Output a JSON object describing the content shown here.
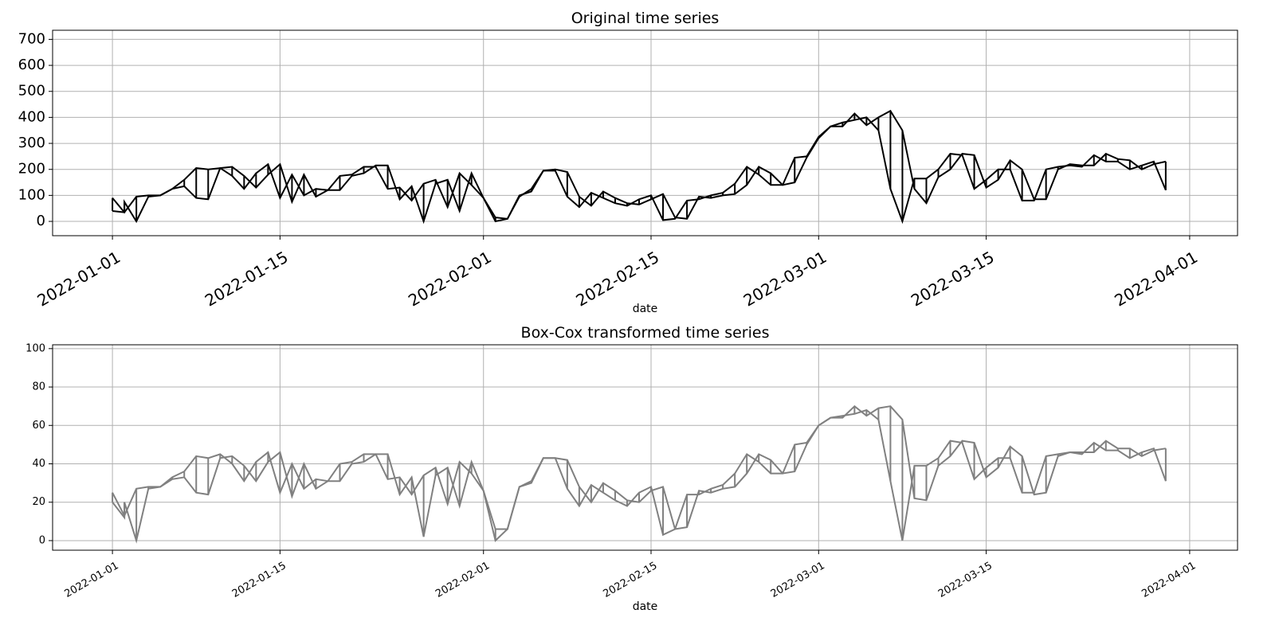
{
  "chart_data": [
    {
      "type": "line",
      "title": "Original time series",
      "xlabel": "date",
      "ylabel": "",
      "xlim": [
        "2021-12-27",
        "2022-04-05"
      ],
      "ylim": [
        -55,
        735
      ],
      "yticks": [
        0,
        100,
        200,
        300,
        400,
        500,
        600,
        700
      ],
      "xticks": [
        "2022-01-01",
        "2022-01-15",
        "2022-02-01",
        "2022-02-15",
        "2022-03-01",
        "2022-03-15",
        "2022-04-01"
      ],
      "grid": true,
      "color": "#000000",
      "series": [
        {
          "x": [
            "2022-01-01",
            "2022-01-02",
            "2022-01-03",
            "2022-01-04",
            "2022-01-05",
            "2022-01-06",
            "2022-01-07",
            "2022-01-08",
            "2022-01-09",
            "2022-01-10",
            "2022-01-11",
            "2022-01-12",
            "2022-01-13",
            "2022-01-14",
            "2022-01-15",
            "2022-01-16",
            "2022-01-17",
            "2022-01-18",
            "2022-01-19",
            "2022-01-20",
            "2022-01-21",
            "2022-01-22",
            "2022-01-23",
            "2022-01-24",
            "2022-01-25",
            "2022-01-26",
            "2022-01-27",
            "2022-01-28",
            "2022-01-29",
            "2022-01-30",
            "2022-01-31",
            "2022-02-01",
            "2022-02-02",
            "2022-02-03",
            "2022-02-04",
            "2022-02-05",
            "2022-02-06",
            "2022-02-07",
            "2022-02-08",
            "2022-02-09",
            "2022-02-10",
            "2022-02-11",
            "2022-02-12",
            "2022-02-13",
            "2022-02-14",
            "2022-02-15",
            "2022-02-16",
            "2022-02-17",
            "2022-02-18",
            "2022-02-19",
            "2022-02-20",
            "2022-02-21",
            "2022-02-22",
            "2022-02-23",
            "2022-02-24",
            "2022-02-25",
            "2022-02-26",
            "2022-02-27",
            "2022-02-28",
            "2022-03-01",
            "2022-03-02",
            "2022-03-03",
            "2022-03-04",
            "2022-03-05",
            "2022-03-06",
            "2022-03-07",
            "2022-03-08",
            "2022-03-09",
            "2022-03-10",
            "2022-03-11",
            "2022-03-12",
            "2022-03-13",
            "2022-03-14",
            "2022-03-15",
            "2022-03-16",
            "2022-03-17",
            "2022-03-18",
            "2022-03-19",
            "2022-03-20",
            "2022-03-21",
            "2022-03-22",
            "2022-03-23",
            "2022-03-24",
            "2022-03-25",
            "2022-03-26",
            "2022-03-27",
            "2022-03-28",
            "2022-03-29",
            "2022-03-30"
          ],
          "y": [
            90,
            35,
            95,
            100,
            100,
            125,
            160,
            205,
            200,
            205,
            175,
            125,
            185,
            220,
            90,
            180,
            100,
            125,
            120,
            175,
            180,
            210,
            210,
            125,
            130,
            80,
            145,
            160,
            55,
            185,
            140,
            90,
            15,
            10,
            95,
            125,
            195,
            200,
            190,
            95,
            60,
            115,
            90,
            70,
            65,
            85,
            105,
            15,
            10,
            95,
            90,
            100,
            105,
            140,
            210,
            185,
            140,
            150,
            245,
            320,
            365,
            365,
            415,
            370,
            400,
            425,
            350,
            125,
            70,
            170,
            200,
            260,
            255,
            130,
            160,
            235,
            200,
            85,
            85,
            200,
            220,
            215,
            215,
            260,
            240,
            235,
            200,
            220,
            230
          ]
        },
        {
          "x": [
            "2022-01-01",
            "2022-01-02",
            "2022-01-02",
            "2022-01-03",
            "2022-01-04",
            "2022-01-05",
            "2022-01-06",
            "2022-01-07",
            "2022-01-08",
            "2022-01-09",
            "2022-01-10",
            "2022-01-11",
            "2022-01-12",
            "2022-01-13",
            "2022-01-14",
            "2022-01-15",
            "2022-01-16",
            "2022-01-17",
            "2022-01-18",
            "2022-01-19",
            "2022-01-20",
            "2022-01-21",
            "2022-01-22",
            "2022-01-23",
            "2022-01-24",
            "2022-01-25",
            "2022-01-26",
            "2022-01-27",
            "2022-01-28",
            "2022-01-29",
            "2022-01-30",
            "2022-01-31",
            "2022-02-01",
            "2022-02-02",
            "2022-02-03",
            "2022-02-04",
            "2022-02-05",
            "2022-02-06",
            "2022-02-07",
            "2022-02-08",
            "2022-02-09",
            "2022-02-10",
            "2022-02-11",
            "2022-02-12",
            "2022-02-13",
            "2022-02-14",
            "2022-02-15",
            "2022-02-16",
            "2022-02-17",
            "2022-02-18",
            "2022-02-19",
            "2022-02-20",
            "2022-02-21",
            "2022-02-22",
            "2022-02-23",
            "2022-02-24",
            "2022-02-25",
            "2022-02-26",
            "2022-02-27",
            "2022-02-28",
            "2022-03-01",
            "2022-03-02",
            "2022-03-03",
            "2022-03-04",
            "2022-03-05",
            "2022-03-06",
            "2022-03-07",
            "2022-03-08",
            "2022-03-09",
            "2022-03-10",
            "2022-03-11",
            "2022-03-12",
            "2022-03-13",
            "2022-03-14",
            "2022-03-15",
            "2022-03-16",
            "2022-03-17",
            "2022-03-18",
            "2022-03-19",
            "2022-03-20",
            "2022-03-21",
            "2022-03-22",
            "2022-03-23",
            "2022-03-24",
            "2022-03-25",
            "2022-03-26",
            "2022-03-27",
            "2022-03-28",
            "2022-03-29",
            "2022-03-30"
          ],
          "y": [
            40,
            35,
            75,
            0,
            95,
            100,
            125,
            135,
            90,
            85,
            205,
            210,
            175,
            130,
            180,
            220,
            75,
            180,
            95,
            120,
            120,
            175,
            185,
            215,
            215,
            85,
            135,
            0,
            145,
            160,
            40,
            185,
            90,
            0,
            10,
            100,
            115,
            195,
            195,
            95,
            55,
            110,
            90,
            70,
            60,
            85,
            100,
            5,
            10,
            80,
            85,
            100,
            110,
            145,
            210,
            180,
            140,
            140,
            245,
            250,
            325,
            365,
            380,
            390,
            400,
            350,
            125,
            0,
            165,
            165,
            200,
            260,
            255,
            125,
            160,
            200,
            200,
            80,
            80,
            200,
            210,
            215,
            210,
            255,
            230,
            230,
            200,
            215,
            230,
            120
          ]
        }
      ]
    },
    {
      "type": "line",
      "title": "Box-Cox transformed time series",
      "xlabel": "date",
      "ylabel": "",
      "xlim": [
        "2021-12-27",
        "2022-04-05"
      ],
      "ylim": [
        -5,
        102
      ],
      "yticks": [
        0,
        20,
        40,
        60,
        80,
        100
      ],
      "xticks": [
        "2022-01-01",
        "2022-01-15",
        "2022-02-01",
        "2022-02-15",
        "2022-03-01",
        "2022-03-15",
        "2022-04-01"
      ],
      "grid": true,
      "color": "#808080",
      "series": [
        {
          "x": [
            "2022-01-01",
            "2022-01-02",
            "2022-01-03",
            "2022-01-04",
            "2022-01-05",
            "2022-01-06",
            "2022-01-07",
            "2022-01-08",
            "2022-01-09",
            "2022-01-10",
            "2022-01-11",
            "2022-01-12",
            "2022-01-13",
            "2022-01-14",
            "2022-01-15",
            "2022-01-16",
            "2022-01-17",
            "2022-01-18",
            "2022-01-19",
            "2022-01-20",
            "2022-01-21",
            "2022-01-22",
            "2022-01-23",
            "2022-01-24",
            "2022-01-25",
            "2022-01-26",
            "2022-01-27",
            "2022-01-28",
            "2022-01-29",
            "2022-01-30",
            "2022-01-31",
            "2022-02-01",
            "2022-02-02",
            "2022-02-03",
            "2022-02-04",
            "2022-02-05",
            "2022-02-06",
            "2022-02-07",
            "2022-02-08",
            "2022-02-09",
            "2022-02-10",
            "2022-02-11",
            "2022-02-12",
            "2022-02-13",
            "2022-02-14",
            "2022-02-15",
            "2022-02-16",
            "2022-02-17",
            "2022-02-18",
            "2022-02-19",
            "2022-02-20",
            "2022-02-21",
            "2022-02-22",
            "2022-02-23",
            "2022-02-24",
            "2022-02-25",
            "2022-02-26",
            "2022-02-27",
            "2022-02-28",
            "2022-03-01",
            "2022-03-02",
            "2022-03-03",
            "2022-03-04",
            "2022-03-05",
            "2022-03-06",
            "2022-03-07",
            "2022-03-08",
            "2022-03-09",
            "2022-03-10",
            "2022-03-11",
            "2022-03-12",
            "2022-03-13",
            "2022-03-14",
            "2022-03-15",
            "2022-03-16",
            "2022-03-17",
            "2022-03-18",
            "2022-03-19",
            "2022-03-20",
            "2022-03-21",
            "2022-03-22",
            "2022-03-23",
            "2022-03-24",
            "2022-03-25",
            "2022-03-26",
            "2022-03-27",
            "2022-03-28",
            "2022-03-29",
            "2022-03-30"
          ],
          "y": [
            25,
            13,
            27,
            28,
            28,
            33,
            36,
            44,
            43,
            45,
            40,
            31,
            41,
            46,
            25,
            40,
            27,
            32,
            31,
            40,
            41,
            45,
            45,
            32,
            33,
            24,
            34,
            38,
            19,
            41,
            35,
            26,
            6,
            6,
            28,
            31,
            43,
            43,
            42,
            28,
            20,
            30,
            26,
            21,
            20,
            26,
            28,
            6,
            7,
            26,
            25,
            27,
            28,
            35,
            45,
            42,
            35,
            36,
            50,
            60,
            64,
            64,
            70,
            65,
            69,
            70,
            63,
            22,
            21,
            39,
            44,
            52,
            51,
            33,
            38,
            49,
            44,
            24,
            25,
            44,
            46,
            46,
            46,
            52,
            48,
            48,
            44,
            47,
            48
          ]
        },
        {
          "x": [
            "2022-01-01",
            "2022-01-02",
            "2022-01-02",
            "2022-01-03",
            "2022-01-04",
            "2022-01-05",
            "2022-01-06",
            "2022-01-07",
            "2022-01-08",
            "2022-01-09",
            "2022-01-10",
            "2022-01-11",
            "2022-01-12",
            "2022-01-13",
            "2022-01-14",
            "2022-01-15",
            "2022-01-16",
            "2022-01-17",
            "2022-01-18",
            "2022-01-19",
            "2022-01-20",
            "2022-01-21",
            "2022-01-22",
            "2022-01-23",
            "2022-01-24",
            "2022-01-25",
            "2022-01-26",
            "2022-01-27",
            "2022-01-28",
            "2022-01-29",
            "2022-01-30",
            "2022-01-31",
            "2022-02-01",
            "2022-02-02",
            "2022-02-03",
            "2022-02-04",
            "2022-02-05",
            "2022-02-06",
            "2022-02-07",
            "2022-02-08",
            "2022-02-09",
            "2022-02-10",
            "2022-02-11",
            "2022-02-12",
            "2022-02-13",
            "2022-02-14",
            "2022-02-15",
            "2022-02-16",
            "2022-02-17",
            "2022-02-18",
            "2022-02-19",
            "2022-02-20",
            "2022-02-21",
            "2022-02-22",
            "2022-02-23",
            "2022-02-24",
            "2022-02-25",
            "2022-02-26",
            "2022-02-27",
            "2022-02-28",
            "2022-03-01",
            "2022-03-02",
            "2022-03-03",
            "2022-03-04",
            "2022-03-05",
            "2022-03-06",
            "2022-03-07",
            "2022-03-08",
            "2022-03-09",
            "2022-03-10",
            "2022-03-11",
            "2022-03-12",
            "2022-03-13",
            "2022-03-14",
            "2022-03-15",
            "2022-03-16",
            "2022-03-17",
            "2022-03-18",
            "2022-03-19",
            "2022-03-20",
            "2022-03-21",
            "2022-03-22",
            "2022-03-23",
            "2022-03-24",
            "2022-03-25",
            "2022-03-26",
            "2022-03-27",
            "2022-03-28",
            "2022-03-29",
            "2022-03-30"
          ],
          "y": [
            20,
            12,
            20,
            0,
            27,
            28,
            32,
            33,
            25,
            24,
            43,
            44,
            39,
            31,
            41,
            46,
            23,
            40,
            27,
            31,
            31,
            40,
            41,
            45,
            45,
            24,
            33,
            2,
            34,
            38,
            18,
            41,
            26,
            0,
            6,
            28,
            30,
            43,
            43,
            27,
            18,
            29,
            25,
            21,
            18,
            25,
            28,
            3,
            6,
            24,
            24,
            27,
            29,
            35,
            45,
            41,
            35,
            35,
            50,
            51,
            60,
            64,
            65,
            66,
            68,
            63,
            31,
            0,
            39,
            39,
            43,
            52,
            51,
            32,
            38,
            43,
            43,
            25,
            25,
            44,
            45,
            46,
            45,
            51,
            47,
            47,
            43,
            46,
            48,
            31
          ]
        }
      ]
    }
  ]
}
